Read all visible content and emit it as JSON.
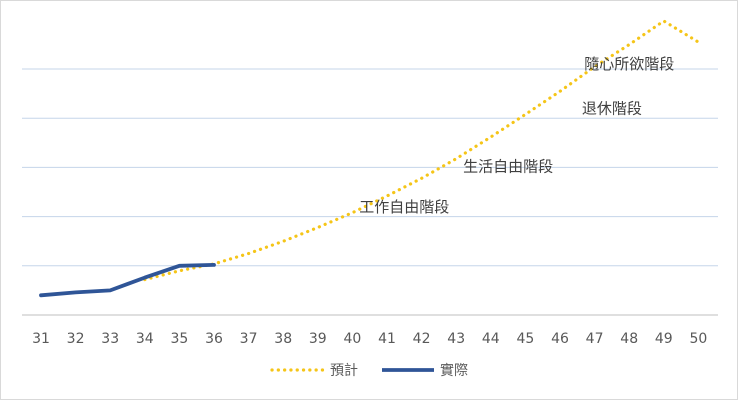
{
  "chart_data": {
    "type": "line",
    "x": [
      31,
      32,
      33,
      34,
      35,
      36,
      37,
      38,
      39,
      40,
      41,
      42,
      43,
      44,
      45,
      46,
      47,
      48,
      49,
      50
    ],
    "xlim": [
      31,
      50
    ],
    "ylim": [
      0,
      6
    ],
    "ytick_labels_shown": false,
    "grid": true,
    "legend_position": "bottom",
    "series": [
      {
        "name": "預計",
        "style": "dotted",
        "color": "#F5C518",
        "x": [
          34,
          35,
          36,
          37,
          38,
          39,
          40,
          41,
          42,
          43,
          44,
          45,
          46,
          47,
          48,
          49,
          50
        ],
        "values": [
          0.72,
          0.9,
          1.04,
          1.25,
          1.5,
          1.78,
          2.08,
          2.42,
          2.78,
          3.18,
          3.62,
          4.08,
          4.55,
          5.05,
          5.5,
          5.98,
          5.55
        ]
      },
      {
        "name": "實際",
        "style": "solid",
        "color": "#2F5597",
        "x": [
          31,
          32,
          33,
          34,
          35,
          36
        ],
        "values": [
          0.4,
          0.46,
          0.5,
          0.76,
          1.0,
          1.02
        ]
      }
    ],
    "annotations": [
      {
        "text": "工作自由階段",
        "x": 41.5,
        "y": 2.1
      },
      {
        "text": "生活自由階段",
        "x": 44.5,
        "y": 2.92
      },
      {
        "text": "退休階段",
        "x": 47.5,
        "y": 4.1
      },
      {
        "text": "隨心所欲階段",
        "x": 48.0,
        "y": 5.0
      }
    ]
  }
}
